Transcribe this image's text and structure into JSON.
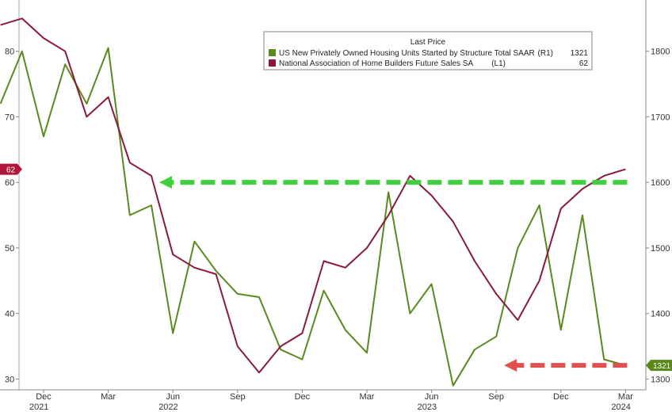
{
  "chart_data": {
    "type": "line",
    "legend_title": "Last Price",
    "legend_placement": "top-right",
    "grid": false,
    "x_tick_labels": [
      {
        "label": "Dec",
        "year": "2021",
        "date": "2021-12"
      },
      {
        "label": "Mar",
        "year": "",
        "date": "2022-03"
      },
      {
        "label": "Jun",
        "year": "2022",
        "date": "2022-06"
      },
      {
        "label": "Sep",
        "year": "",
        "date": "2022-09"
      },
      {
        "label": "Dec",
        "year": "",
        "date": "2022-12"
      },
      {
        "label": "Mar",
        "year": "",
        "date": "2023-03"
      },
      {
        "label": "Jun",
        "year": "2023",
        "date": "2023-06"
      },
      {
        "label": "Sep",
        "year": "",
        "date": "2023-09"
      },
      {
        "label": "Dec",
        "year": "",
        "date": "2023-12"
      },
      {
        "label": "Mar",
        "year": "2024",
        "date": "2024-03"
      }
    ],
    "x_range": [
      "2021-10",
      "2024-03"
    ],
    "left_axis": {
      "ticks": [
        "30",
        "40",
        "50",
        "60",
        "70",
        "80"
      ],
      "ylim": [
        28,
        86
      ]
    },
    "right_axis": {
      "ticks": [
        "1300",
        "1400",
        "1500",
        "1600",
        "1700",
        "1800"
      ],
      "ylim": [
        1280,
        1860
      ]
    },
    "series": [
      {
        "name": "US New Privately Owned Housing Units Started by Structure Total SAAR",
        "axis_tag": "(R1)",
        "last_value": "1321",
        "axis": "right",
        "color": "#5a8a1e",
        "x": [
          "2021-10",
          "2021-11",
          "2021-12",
          "2022-01",
          "2022-02",
          "2022-03",
          "2022-04",
          "2022-05",
          "2022-06",
          "2022-07",
          "2022-08",
          "2022-09",
          "2022-10",
          "2022-11",
          "2022-12",
          "2023-01",
          "2023-02",
          "2023-03",
          "2023-04",
          "2023-05",
          "2023-06",
          "2023-07",
          "2023-08",
          "2023-09",
          "2023-10",
          "2023-11",
          "2023-12",
          "2024-01",
          "2024-02",
          "2024-03"
        ],
        "values": [
          1720,
          1800,
          1670,
          1780,
          1720,
          1805,
          1550,
          1565,
          1370,
          1510,
          1465,
          1430,
          1425,
          1345,
          1330,
          1435,
          1375,
          1340,
          1585,
          1400,
          1445,
          1290,
          1345,
          1365,
          1500,
          1565,
          1375,
          1550,
          1330,
          1321
        ]
      },
      {
        "name": "National Association of Home Builders Future Sales SA",
        "axis_tag": "(L1)",
        "last_value": "62",
        "axis": "left",
        "color": "#8b1a3a",
        "x": [
          "2021-10",
          "2021-11",
          "2021-12",
          "2022-01",
          "2022-02",
          "2022-03",
          "2022-04",
          "2022-05",
          "2022-06",
          "2022-07",
          "2022-08",
          "2022-09",
          "2022-10",
          "2022-11",
          "2022-12",
          "2023-01",
          "2023-02",
          "2023-03",
          "2023-04",
          "2023-05",
          "2023-06",
          "2023-07",
          "2023-08",
          "2023-09",
          "2023-10",
          "2023-11",
          "2023-12",
          "2024-01",
          "2024-02",
          "2024-03"
        ],
        "values": [
          84,
          85,
          82,
          80,
          70,
          73,
          63,
          61,
          49,
          47,
          46,
          35,
          31,
          35,
          37,
          48,
          47,
          50,
          55,
          61,
          58,
          54,
          48,
          43,
          39,
          45,
          56,
          59,
          61,
          62
        ]
      }
    ],
    "arrows": [
      {
        "color": "#3ecf3e",
        "level": 1600,
        "axis": "right",
        "from": "2024-03",
        "to": "2022-05"
      },
      {
        "color": "#e0504e",
        "level": 1321,
        "axis": "right",
        "from": "2024-03",
        "to": "2023-09"
      }
    ],
    "badges": [
      {
        "text": "62",
        "side": "left",
        "color": "#b0183a",
        "value": 62,
        "axis": "left"
      },
      {
        "text": "1321",
        "side": "right",
        "color": "#5a8a1e",
        "value": 1321,
        "axis": "right"
      }
    ]
  }
}
